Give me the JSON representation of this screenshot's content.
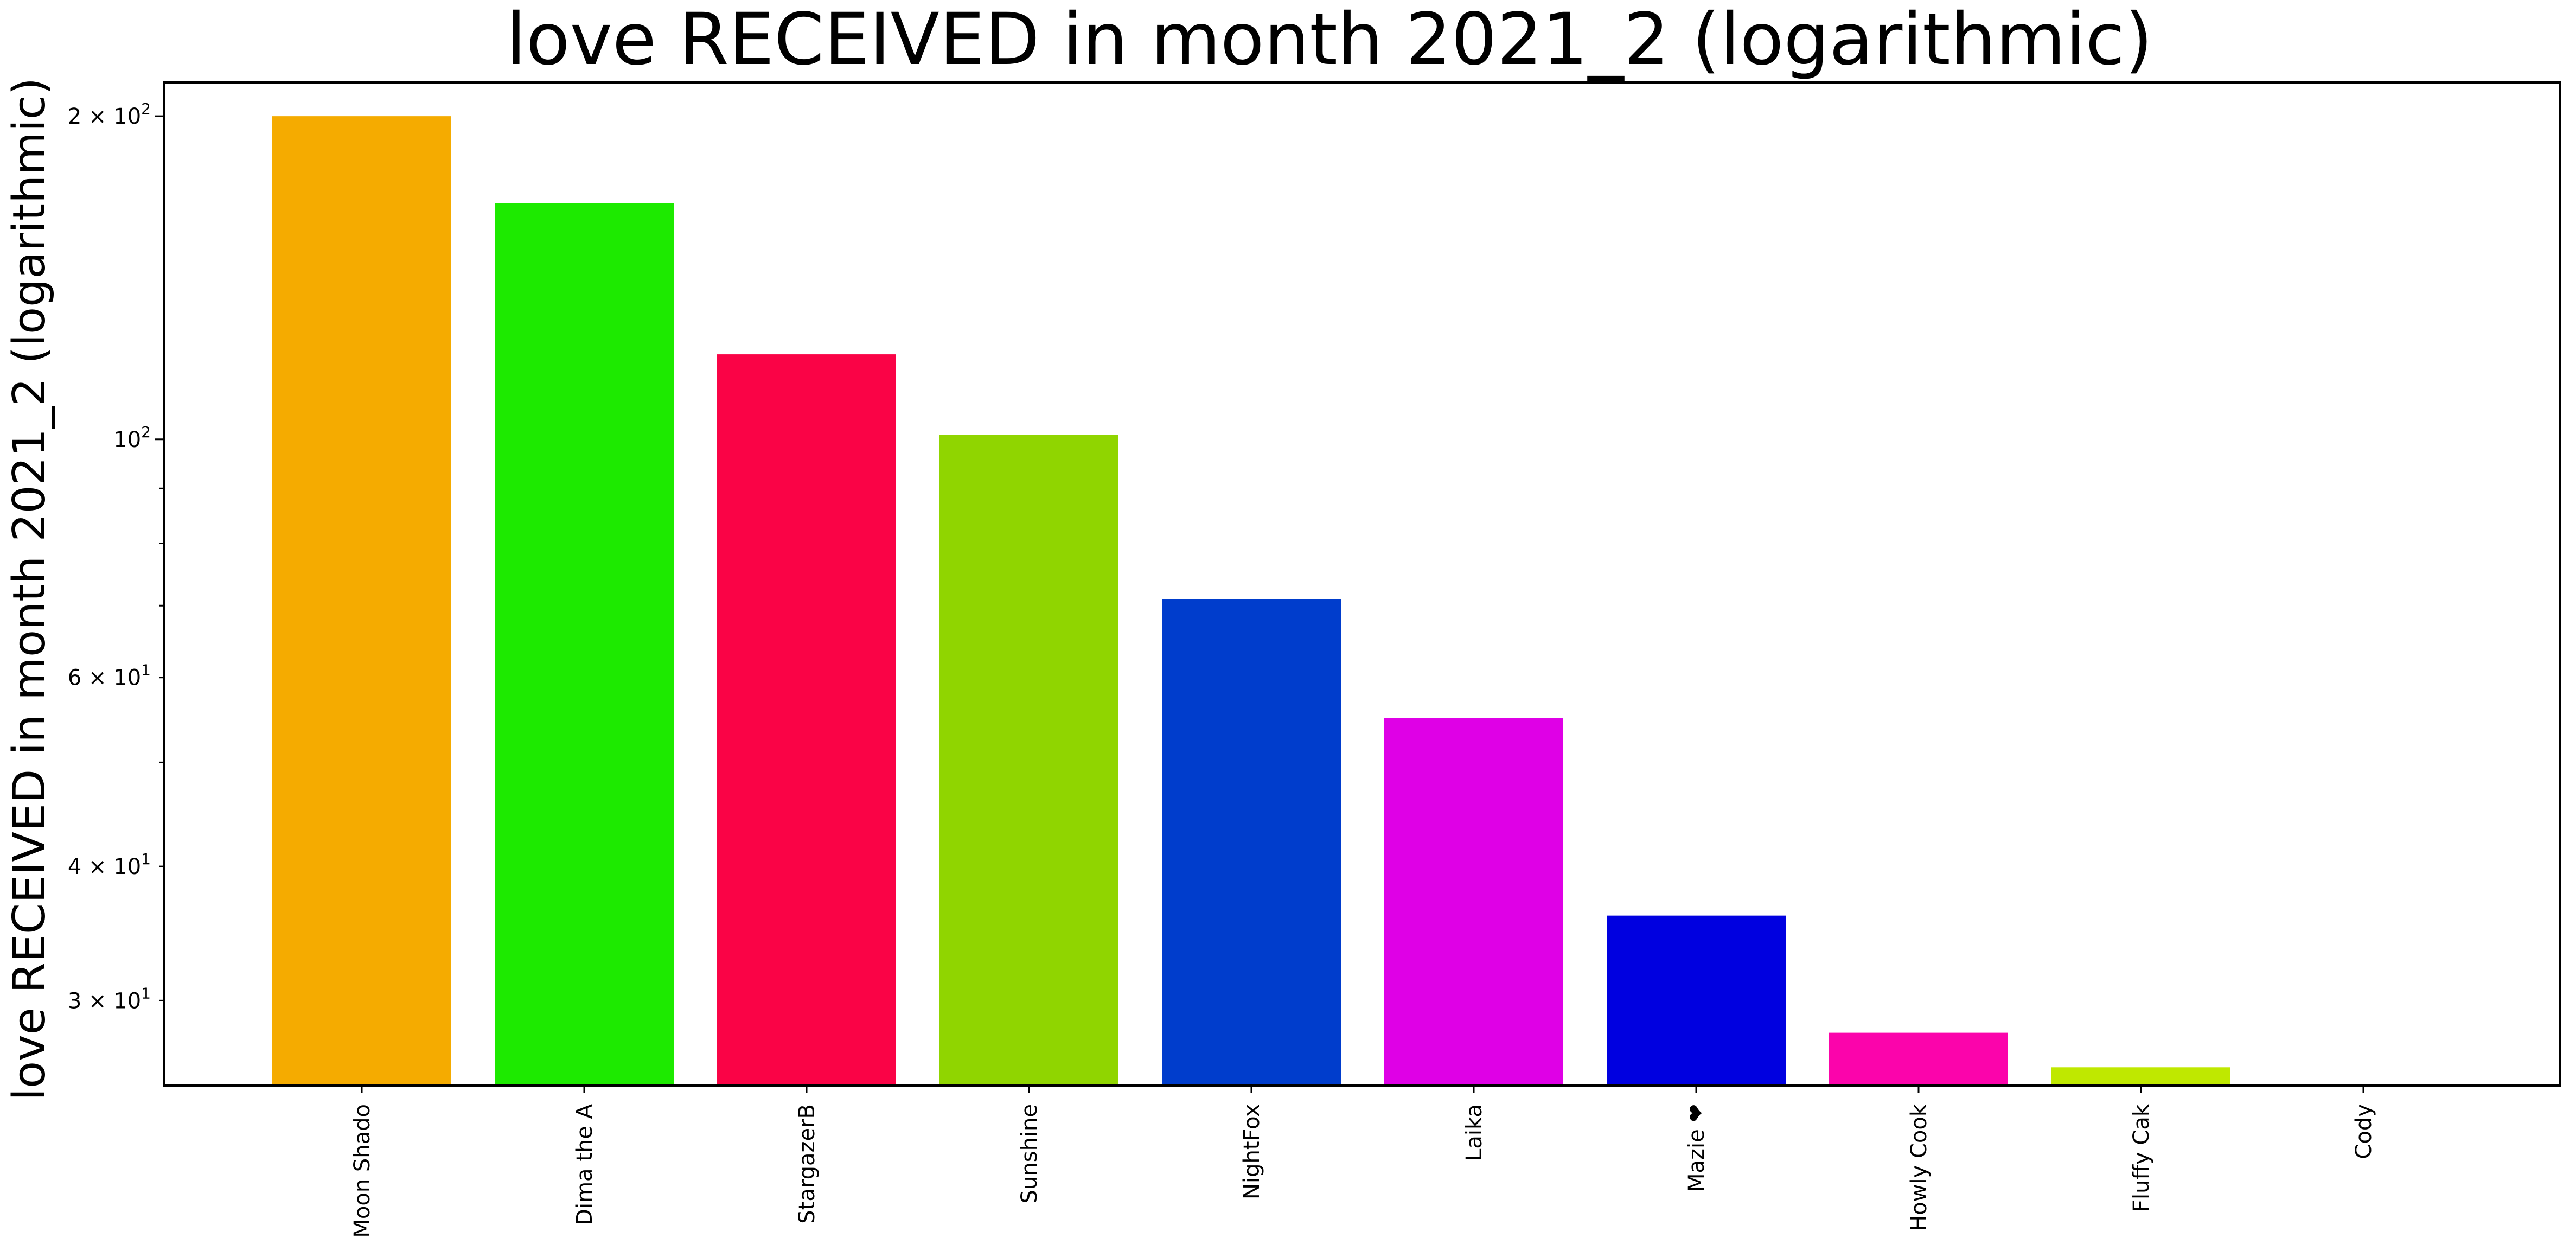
{
  "chart_data": {
    "type": "bar",
    "title": "love RECEIVED in month 2021_2 (logarithmic)",
    "xlabel": "",
    "ylabel": "love RECEIVED in month 2021_2 (logarithmic)",
    "yscale": "log",
    "ylim": [
      25,
      215
    ],
    "grid": false,
    "categories": [
      "Moon Shado",
      "Dima the A",
      "StargazerB",
      "Sunshine",
      "NightFox",
      "Laika",
      "Mazie ❤",
      "Howly Cook",
      "Fluffy Cak",
      "Cody"
    ],
    "values": [
      200,
      166,
      120,
      101,
      71,
      55,
      36,
      28,
      26,
      25
    ],
    "colors": [
      "#f5ab00",
      "#1dea00",
      "#fa0346",
      "#90d500",
      "#003dcc",
      "#df00e6",
      "#0000e0",
      "#fb04ab",
      "#bfe800",
      "#fb1400"
    ],
    "yticks_major": [
      {
        "value": 100,
        "label_base": "10",
        "label_exp": "2"
      },
      {
        "value": 200,
        "label_base": "2 × 10",
        "label_exp": "2"
      }
    ],
    "yticks_minor": [
      {
        "value": 30,
        "label_base": "3 × 10",
        "label_exp": "1"
      },
      {
        "value": 40,
        "label_base": "4 × 10",
        "label_exp": "1"
      },
      {
        "value": 50,
        "label_base": "",
        "label_exp": ""
      },
      {
        "value": 60,
        "label_base": "6 × 10",
        "label_exp": "1"
      },
      {
        "value": 70,
        "label_base": "",
        "label_exp": ""
      },
      {
        "value": 80,
        "label_base": "",
        "label_exp": ""
      },
      {
        "value": 90,
        "label_base": "",
        "label_exp": ""
      }
    ]
  }
}
